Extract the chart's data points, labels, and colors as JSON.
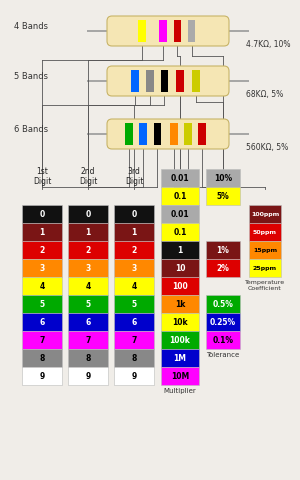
{
  "bg_color": "#f0ede8",
  "resistor_body_color": "#f5e6b4",
  "bands_4": [
    {
      "color": "#ffff00",
      "xr": 0.28
    },
    {
      "color": "#ff00ff",
      "xr": 0.46
    },
    {
      "color": "#cc0000",
      "xr": 0.58
    },
    {
      "color": "#aaaaaa",
      "xr": 0.7
    }
  ],
  "bands_5": [
    {
      "color": "#0066ff",
      "xr": 0.22
    },
    {
      "color": "#888888",
      "xr": 0.35
    },
    {
      "color": "#000000",
      "xr": 0.47
    },
    {
      "color": "#cc0000",
      "xr": 0.6
    },
    {
      "color": "#cccc00",
      "xr": 0.74
    }
  ],
  "bands_6": [
    {
      "color": "#00aa00",
      "xr": 0.17
    },
    {
      "color": "#0066ff",
      "xr": 0.29
    },
    {
      "color": "#000000",
      "xr": 0.41
    },
    {
      "color": "#ff8800",
      "xr": 0.55
    },
    {
      "color": "#cccc00",
      "xr": 0.67
    },
    {
      "color": "#cc0000",
      "xr": 0.79
    }
  ],
  "label_4": "4.7KΩ, 10%",
  "label_5": "68KΩ, 5%",
  "label_6": "560KΩ, 5%",
  "digit_colors": [
    "#111111",
    "#7a1515",
    "#dd0000",
    "#ff8800",
    "#ffff00",
    "#00aa00",
    "#0000cc",
    "#ff00ff",
    "#888888",
    "#ffffff"
  ],
  "digit_labels": [
    "0",
    "1",
    "2",
    "3",
    "4",
    "5",
    "6",
    "7",
    "8",
    "9"
  ],
  "digit_text_colors": [
    "#ffffff",
    "#ffffff",
    "#ffffff",
    "#ffffff",
    "#000000",
    "#ffffff",
    "#ffffff",
    "#000000",
    "#000000",
    "#000000"
  ],
  "mult_colors": [
    "#aaaaaa",
    "#ffff00",
    "#111111",
    "#7a1515",
    "#dd0000",
    "#ff8800",
    "#ffff00",
    "#00aa00",
    "#0000cc",
    "#ff00ff"
  ],
  "mult_labels": [
    "0.01",
    "0.1",
    "1",
    "10",
    "100",
    "1k",
    "10k",
    "100k",
    "1M",
    "10M"
  ],
  "mult_text_colors": [
    "#000000",
    "#000000",
    "#ffffff",
    "#ffffff",
    "#ffffff",
    "#000000",
    "#000000",
    "#ffffff",
    "#ffffff",
    "#000000"
  ],
  "tol_top_colors": [
    "#aaaaaa",
    "#ffff00"
  ],
  "tol_top_labels": [
    "10%",
    "5%"
  ],
  "tol_top_tc": [
    "#000000",
    "#000000"
  ],
  "tol_mid_colors": [
    "#7a1515",
    "#dd0000"
  ],
  "tol_mid_labels": [
    "1%",
    "2%"
  ],
  "tol_mid_tc": [
    "#ffffff",
    "#ffffff"
  ],
  "tol_bot_colors": [
    "#00aa00",
    "#0000cc",
    "#ff00ff"
  ],
  "tol_bot_labels": [
    "0.5%",
    "0.25%",
    "0.1%"
  ],
  "tol_bot_tc": [
    "#ffffff",
    "#ffffff",
    "#000000"
  ],
  "tempco_colors": [
    "#7a1515",
    "#dd0000",
    "#ff8800",
    "#ffff00"
  ],
  "tempco_labels": [
    "100ppm",
    "50ppm",
    "15ppm",
    "25ppm"
  ],
  "tempco_tc": [
    "#ffffff",
    "#ffffff",
    "#000000",
    "#000000"
  ]
}
